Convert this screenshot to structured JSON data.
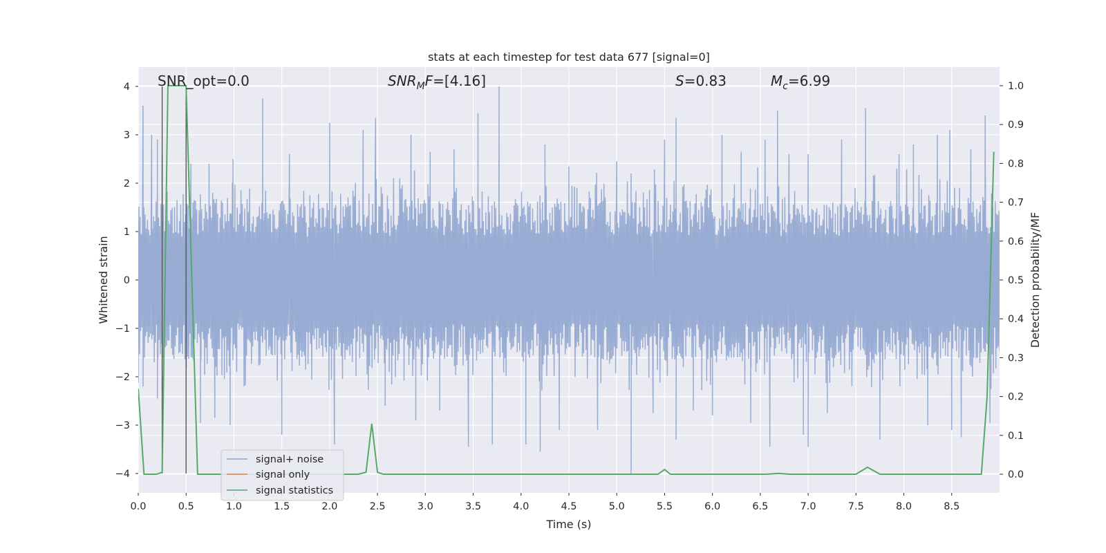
{
  "chart_data": {
    "type": "line",
    "title": "stats at each timestep for test data 677 [signal=0]",
    "xlabel": "Time (s)",
    "ylabel": "Whitened strain",
    "y2label": "Detection probability/MF",
    "xlim": [
      0,
      9.0
    ],
    "ylim": [
      -4.4,
      4.4
    ],
    "y2lim": [
      -0.048,
      1.048
    ],
    "xticks": [
      "0.0",
      "0.5",
      "1.0",
      "1.5",
      "2.0",
      "2.5",
      "3.0",
      "3.5",
      "4.0",
      "4.5",
      "5.0",
      "5.5",
      "6.0",
      "6.5",
      "7.0",
      "7.5",
      "8.0",
      "8.5"
    ],
    "yticks": [
      "−4",
      "−3",
      "−2",
      "−1",
      "0",
      "1",
      "2",
      "3",
      "4"
    ],
    "y2ticks": [
      "0.0",
      "0.1",
      "0.2",
      "0.3",
      "0.4",
      "0.5",
      "0.6",
      "0.7",
      "0.8",
      "0.9",
      "1.0"
    ],
    "grid": true,
    "legend_position": "lower-left",
    "annotations": {
      "snr_opt": "SNR_opt=0.0",
      "snr_mf_sym": "SNR",
      "snr_mf_sub": "M",
      "snr_mf_sym2": "F",
      "snr_mf_val": "=[4.16]",
      "s_sym": "S",
      "s_val": "=0.83",
      "mc_sym": "M",
      "mc_sub": "c",
      "mc_val": "=6.99"
    },
    "vlines_x": [
      0.25,
      0.5
    ],
    "series": [
      {
        "name": "signal+ noise",
        "color": "#8fa5cf",
        "note_values": "dense whitened noise, |y| mostly below 2.3, peaks up to about 4",
        "peaks_up": [
          [
            0.05,
            3.6
          ],
          [
            0.14,
            3.0
          ],
          [
            0.2,
            2.9
          ],
          [
            0.25,
            2.6
          ],
          [
            0.55,
            2.4
          ],
          [
            0.74,
            2.4
          ],
          [
            0.99,
            2.5
          ],
          [
            1.3,
            3.75
          ],
          [
            1.58,
            2.6
          ],
          [
            2.0,
            3.25
          ],
          [
            2.35,
            3.1
          ],
          [
            2.48,
            3.35
          ],
          [
            2.85,
            3.0
          ],
          [
            3.05,
            2.65
          ],
          [
            3.3,
            2.7
          ],
          [
            3.55,
            3.45
          ],
          [
            3.77,
            4.0
          ],
          [
            4.25,
            2.8
          ],
          [
            4.5,
            2.35
          ],
          [
            5.0,
            2.45
          ],
          [
            5.15,
            2.2
          ],
          [
            5.5,
            2.9
          ],
          [
            5.62,
            3.35
          ],
          [
            6.1,
            3.0
          ],
          [
            6.3,
            2.65
          ],
          [
            6.55,
            2.9
          ],
          [
            6.68,
            3.5
          ],
          [
            6.8,
            2.6
          ],
          [
            7.0,
            2.6
          ],
          [
            7.35,
            2.9
          ],
          [
            7.6,
            3.55
          ],
          [
            7.95,
            2.6
          ],
          [
            8.1,
            2.8
          ],
          [
            8.35,
            3.0
          ],
          [
            8.48,
            3.1
          ],
          [
            8.7,
            2.7
          ],
          [
            8.85,
            3.4
          ]
        ],
        "peaks_down": [
          [
            0.05,
            -2.2
          ],
          [
            0.2,
            -2.45
          ],
          [
            0.25,
            -2.3
          ],
          [
            0.65,
            -2.95
          ],
          [
            0.8,
            -2.85
          ],
          [
            0.96,
            -3.0
          ],
          [
            1.5,
            -3.2
          ],
          [
            2.05,
            -3.4
          ],
          [
            2.58,
            -2.6
          ],
          [
            2.9,
            -2.9
          ],
          [
            3.15,
            -2.7
          ],
          [
            3.45,
            -3.45
          ],
          [
            3.7,
            -3.4
          ],
          [
            4.05,
            -3.4
          ],
          [
            4.2,
            -3.55
          ],
          [
            4.4,
            -3.1
          ],
          [
            4.8,
            -3.1
          ],
          [
            5.15,
            -4.0
          ],
          [
            5.38,
            -2.75
          ],
          [
            5.62,
            -3.3
          ],
          [
            5.8,
            -2.7
          ],
          [
            6.0,
            -2.8
          ],
          [
            6.4,
            -2.95
          ],
          [
            6.6,
            -3.45
          ],
          [
            6.95,
            -3.2
          ],
          [
            7.0,
            -3.45
          ],
          [
            7.2,
            -2.75
          ],
          [
            7.75,
            -3.3
          ],
          [
            8.25,
            -3.0
          ],
          [
            8.5,
            -3.1
          ],
          [
            8.6,
            -3.25
          ],
          [
            8.9,
            -2.95
          ]
        ]
      },
      {
        "name": "signal only",
        "color": "#dd8452",
        "x": [
          0,
          9.0
        ],
        "y": [
          0,
          0
        ]
      },
      {
        "name": "signal statistics",
        "color": "#55a868",
        "axis": "right",
        "x": [
          0.0,
          0.06,
          0.19,
          0.25,
          0.31,
          0.5,
          0.62,
          2.3,
          2.38,
          2.44,
          2.5,
          2.56,
          5.43,
          5.5,
          5.56,
          6.56,
          6.69,
          6.81,
          7.5,
          7.62,
          7.75,
          8.81,
          8.87,
          8.94
        ],
        "y": [
          0.22,
          0.0,
          0.0,
          0.005,
          1.0,
          1.0,
          0.0,
          0.0,
          0.005,
          0.13,
          0.005,
          0.0,
          0.0,
          0.012,
          0.0,
          0.0,
          0.002,
          0.0,
          0.0,
          0.018,
          0.0,
          0.0,
          0.2,
          0.83
        ]
      }
    ]
  }
}
